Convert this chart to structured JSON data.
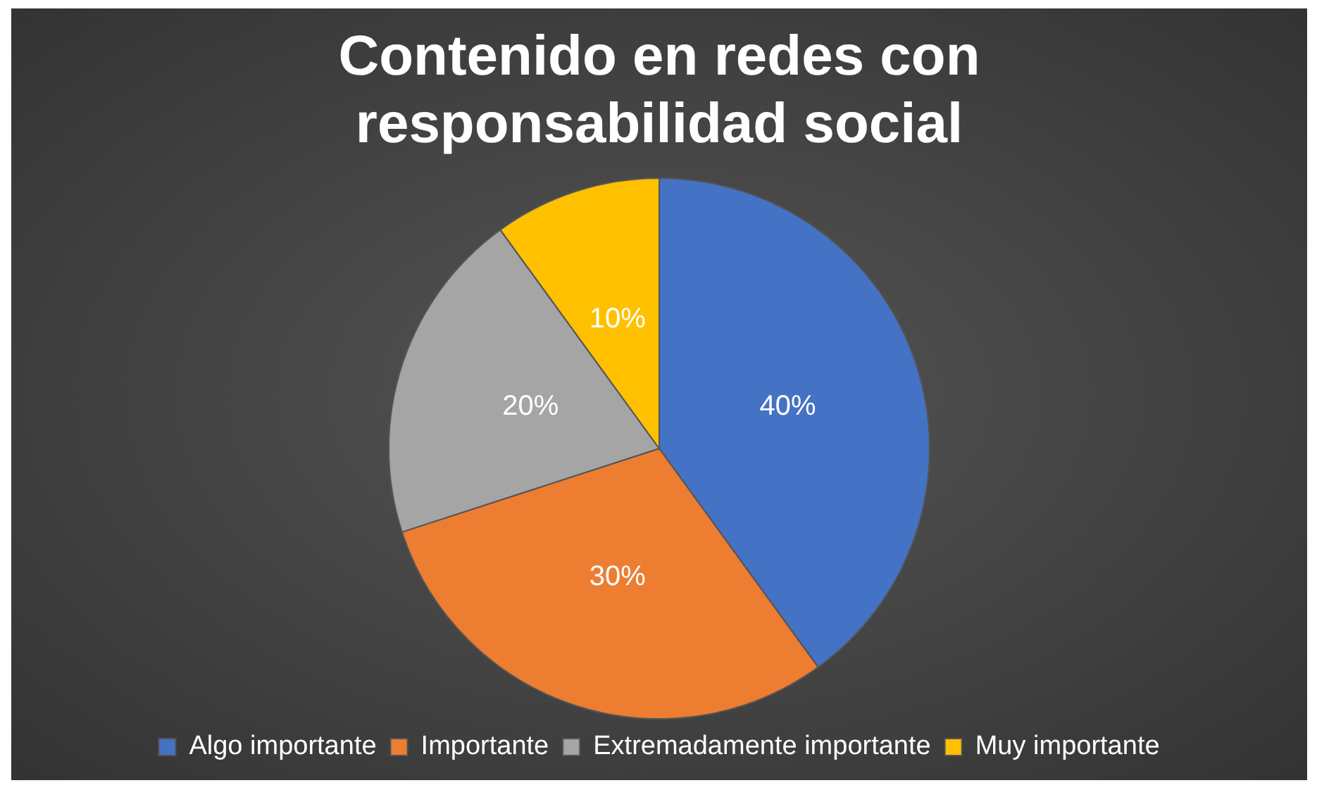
{
  "chart_data": {
    "type": "pie",
    "title": "Contenido en redes con responsabilidad social",
    "categories": [
      "Algo importante",
      "Importante",
      "Extremadamente importante",
      "Muy importante"
    ],
    "values": [
      40,
      30,
      20,
      10
    ],
    "value_labels": [
      "40%",
      "30%",
      "20%",
      "10%"
    ],
    "colors": [
      "#4472c4",
      "#ed7d31",
      "#a5a5a5",
      "#ffc000"
    ],
    "legend": "bottom"
  }
}
